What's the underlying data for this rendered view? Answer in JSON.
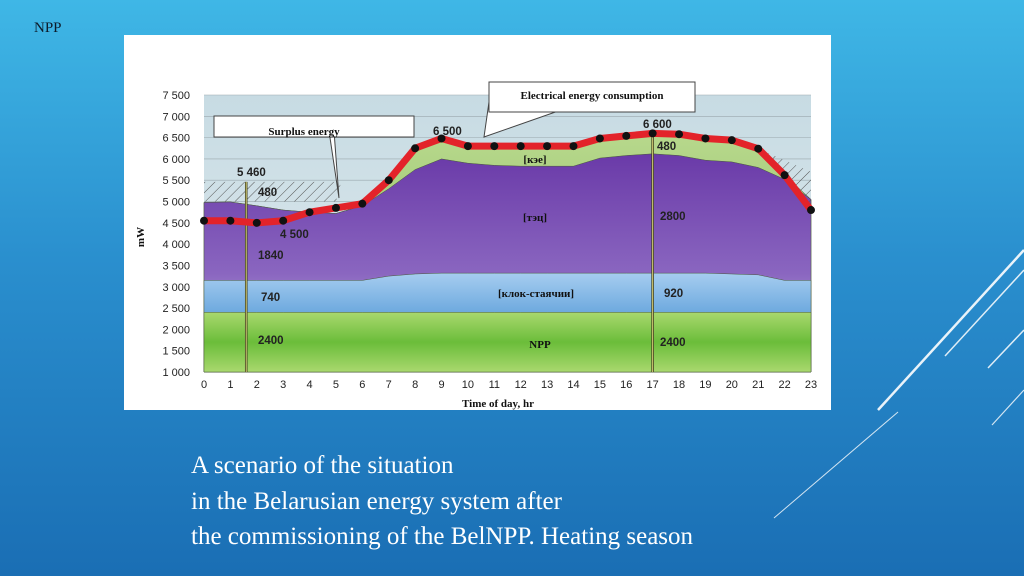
{
  "slide_label": "NPP",
  "caption": {
    "line1": "A scenario of the situation",
    "line2": "in the Belarusian energy system after",
    "line3": "the commissioning of the BelNPP. Heating season"
  },
  "chart_data": {
    "type": "area",
    "xlabel": "Time of day, hr",
    "ylabel": "mW",
    "x": [
      0,
      1,
      2,
      3,
      4,
      5,
      6,
      7,
      8,
      9,
      10,
      11,
      12,
      13,
      14,
      15,
      16,
      17,
      18,
      19,
      20,
      21,
      22,
      23
    ],
    "ylim": [
      1000,
      7500
    ],
    "yticks": [
      "7 500",
      "7 000",
      "6 500",
      "6 000",
      "5 500",
      "5 000",
      "4 500",
      "4 000",
      "3 500",
      "3 000",
      "2 500",
      "2 000",
      "1 500",
      "1 000"
    ],
    "layers": [
      {
        "name": "NPP",
        "color": "#7cc242",
        "values": [
          2400,
          2400,
          2400,
          2400,
          2400,
          2400,
          2400,
          2400,
          2400,
          2400,
          2400,
          2400,
          2400,
          2400,
          2400,
          2400,
          2400,
          2400,
          2400,
          2400,
          2400,
          2400,
          2400,
          2400
        ]
      },
      {
        "name": "[клок-стаячии]",
        "color": "#6fa9dd",
        "values": [
          3150,
          3150,
          3150,
          3150,
          3150,
          3150,
          3150,
          3250,
          3300,
          3320,
          3320,
          3320,
          3320,
          3320,
          3320,
          3320,
          3320,
          3320,
          3320,
          3320,
          3300,
          3280,
          3150,
          3150
        ]
      },
      {
        "name": "[тэц]",
        "color": "#7a4fb0",
        "values": [
          4980,
          4990,
          4900,
          4800,
          4750,
          4720,
          4900,
          5300,
          5750,
          6000,
          5900,
          5850,
          5830,
          5830,
          5830,
          6020,
          6080,
          6120,
          6080,
          5970,
          5930,
          5800,
          5520,
          5050
        ]
      },
      {
        "name": "[кэе]",
        "color": "#9cc66a",
        "values": [
          4980,
          4990,
          4900,
          4800,
          4750,
          4720,
          4900,
          5600,
          6200,
          6480,
          6320,
          6300,
          6300,
          6300,
          6300,
          6440,
          6500,
          6560,
          6560,
          6480,
          6440,
          6240,
          5620,
          5050
        ]
      }
    ],
    "consumption": {
      "name": "Electrical energy consumption",
      "values": [
        4550,
        4550,
        4500,
        4550,
        4750,
        4850,
        4950,
        5500,
        6250,
        6480,
        6300,
        6300,
        6300,
        6300,
        6300,
        6480,
        6540,
        6600,
        6580,
        6480,
        6440,
        6240,
        5620,
        4800
      ]
    },
    "annotations": {
      "consumption_label": "Electrical energy consumption",
      "surplus_label": "Surplus energy",
      "peak_left": "6 500",
      "peak_right": "6 600",
      "level_5460": "5 460",
      "min_4500": "4 500",
      "left_480": "480",
      "left_1840": "1840",
      "left_740": "740",
      "left_2400": "2400",
      "right_480": "480",
      "right_2800": "2800",
      "right_920": "920",
      "right_2400": "2400",
      "layer_kee": "[кэе]",
      "layer_tec": "[тэц]",
      "layer_block": "[клок-стаячии]",
      "layer_npp": "NPP"
    },
    "grid": true
  }
}
